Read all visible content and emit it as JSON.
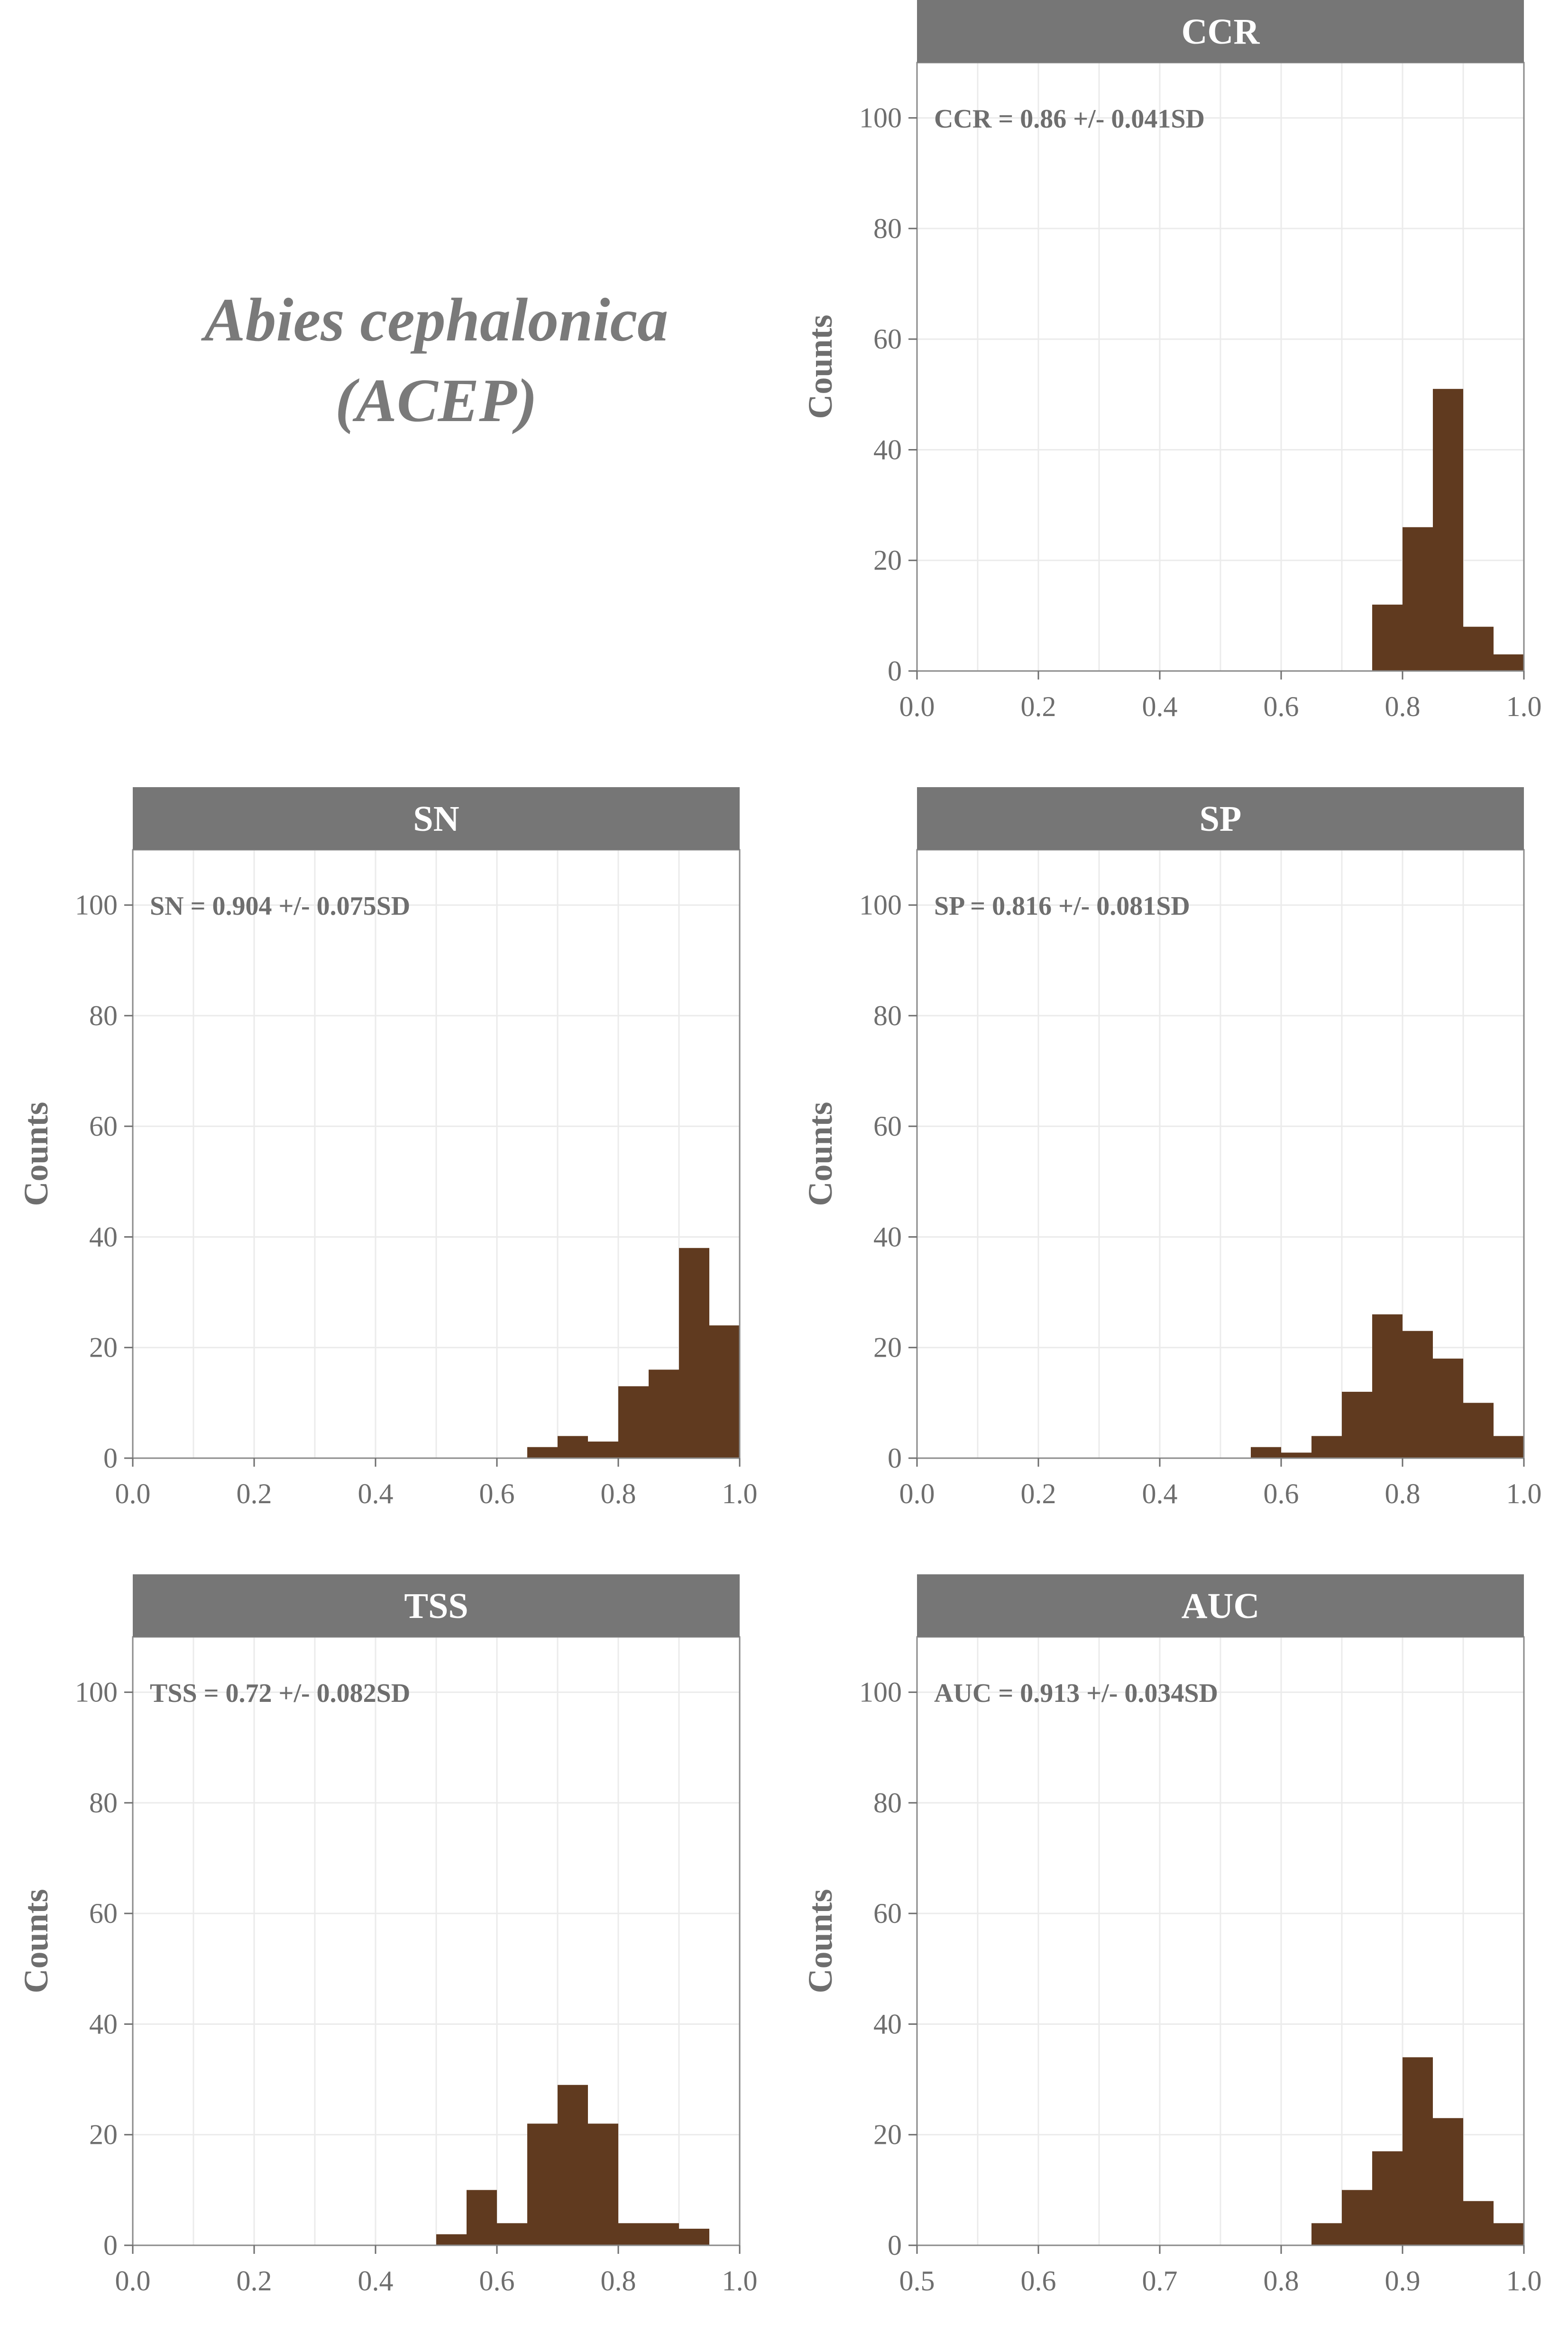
{
  "figure": {
    "species_title_line1": "Abies cephalonica",
    "species_title_line2": "(ACEP)"
  },
  "colors": {
    "bar_fill": "#603a1f",
    "strip_fill": "#767676",
    "strip_text": "#ffffff",
    "axis_text": "#6e6e6e",
    "grid": "#ebebeb",
    "panel_border": "#8a8a8a",
    "stat_text": "#6e6e6e"
  },
  "chart_data": [
    {
      "type": "bar",
      "title": "CCR",
      "annotation": "CCR = 0.86 +/- 0.041SD",
      "ylabel": "Counts",
      "xlim": [
        0.0,
        1.0
      ],
      "ylim": [
        0,
        110
      ],
      "xticks": [
        "0.0",
        "0.2",
        "0.4",
        "0.6",
        "0.8",
        "1.0"
      ],
      "yticks": [
        "0",
        "20",
        "40",
        "60",
        "80",
        "100"
      ],
      "bins": [
        {
          "x0": 0.75,
          "x1": 0.8,
          "count": 12
        },
        {
          "x0": 0.8,
          "x1": 0.85,
          "count": 26
        },
        {
          "x0": 0.85,
          "x1": 0.9,
          "count": 51
        },
        {
          "x0": 0.9,
          "x1": 0.95,
          "count": 8
        },
        {
          "x0": 0.95,
          "x1": 1.0,
          "count": 3
        }
      ]
    },
    {
      "type": "bar",
      "title": "SN",
      "annotation": "SN = 0.904 +/- 0.075SD",
      "ylabel": "Counts",
      "xlim": [
        0.0,
        1.0
      ],
      "ylim": [
        0,
        110
      ],
      "xticks": [
        "0.0",
        "0.2",
        "0.4",
        "0.6",
        "0.8",
        "1.0"
      ],
      "yticks": [
        "0",
        "20",
        "40",
        "60",
        "80",
        "100"
      ],
      "bins": [
        {
          "x0": 0.65,
          "x1": 0.7,
          "count": 2
        },
        {
          "x0": 0.7,
          "x1": 0.75,
          "count": 4
        },
        {
          "x0": 0.75,
          "x1": 0.8,
          "count": 3
        },
        {
          "x0": 0.8,
          "x1": 0.85,
          "count": 13
        },
        {
          "x0": 0.85,
          "x1": 0.9,
          "count": 16
        },
        {
          "x0": 0.9,
          "x1": 0.95,
          "count": 38
        },
        {
          "x0": 0.95,
          "x1": 1.0,
          "count": 24
        }
      ]
    },
    {
      "type": "bar",
      "title": "SP",
      "annotation": "SP = 0.816 +/- 0.081SD",
      "ylabel": "Counts",
      "xlim": [
        0.0,
        1.0
      ],
      "ylim": [
        0,
        110
      ],
      "xticks": [
        "0.0",
        "0.2",
        "0.4",
        "0.6",
        "0.8",
        "1.0"
      ],
      "yticks": [
        "0",
        "20",
        "40",
        "60",
        "80",
        "100"
      ],
      "bins": [
        {
          "x0": 0.55,
          "x1": 0.6,
          "count": 2
        },
        {
          "x0": 0.6,
          "x1": 0.65,
          "count": 1
        },
        {
          "x0": 0.65,
          "x1": 0.7,
          "count": 4
        },
        {
          "x0": 0.7,
          "x1": 0.75,
          "count": 12
        },
        {
          "x0": 0.75,
          "x1": 0.8,
          "count": 26
        },
        {
          "x0": 0.8,
          "x1": 0.85,
          "count": 23
        },
        {
          "x0": 0.85,
          "x1": 0.9,
          "count": 18
        },
        {
          "x0": 0.9,
          "x1": 0.95,
          "count": 10
        },
        {
          "x0": 0.95,
          "x1": 1.0,
          "count": 4
        }
      ]
    },
    {
      "type": "bar",
      "title": "TSS",
      "annotation": "TSS = 0.72 +/- 0.082SD",
      "ylabel": "Counts",
      "xlim": [
        0.0,
        1.0
      ],
      "ylim": [
        0,
        110
      ],
      "xticks": [
        "0.0",
        "0.2",
        "0.4",
        "0.6",
        "0.8",
        "1.0"
      ],
      "yticks": [
        "0",
        "20",
        "40",
        "60",
        "80",
        "100"
      ],
      "bins": [
        {
          "x0": 0.5,
          "x1": 0.55,
          "count": 2
        },
        {
          "x0": 0.55,
          "x1": 0.6,
          "count": 10
        },
        {
          "x0": 0.6,
          "x1": 0.65,
          "count": 4
        },
        {
          "x0": 0.65,
          "x1": 0.7,
          "count": 22
        },
        {
          "x0": 0.7,
          "x1": 0.75,
          "count": 29
        },
        {
          "x0": 0.75,
          "x1": 0.8,
          "count": 22
        },
        {
          "x0": 0.8,
          "x1": 0.85,
          "count": 4
        },
        {
          "x0": 0.85,
          "x1": 0.9,
          "count": 4
        },
        {
          "x0": 0.9,
          "x1": 0.95,
          "count": 3
        }
      ]
    },
    {
      "type": "bar",
      "title": "AUC",
      "annotation": "AUC = 0.913 +/- 0.034SD",
      "ylabel": "Counts",
      "xlim": [
        0.5,
        1.0
      ],
      "ylim": [
        0,
        110
      ],
      "xticks": [
        "0.5",
        "0.6",
        "0.7",
        "0.8",
        "0.9",
        "1.0"
      ],
      "yticks": [
        "0",
        "20",
        "40",
        "60",
        "80",
        "100"
      ],
      "bins": [
        {
          "x0": 0.825,
          "x1": 0.85,
          "count": 4
        },
        {
          "x0": 0.85,
          "x1": 0.875,
          "count": 10
        },
        {
          "x0": 0.875,
          "x1": 0.9,
          "count": 17
        },
        {
          "x0": 0.9,
          "x1": 0.925,
          "count": 34
        },
        {
          "x0": 0.925,
          "x1": 0.95,
          "count": 23
        },
        {
          "x0": 0.95,
          "x1": 0.975,
          "count": 8
        },
        {
          "x0": 0.975,
          "x1": 1.0,
          "count": 4
        }
      ]
    }
  ]
}
